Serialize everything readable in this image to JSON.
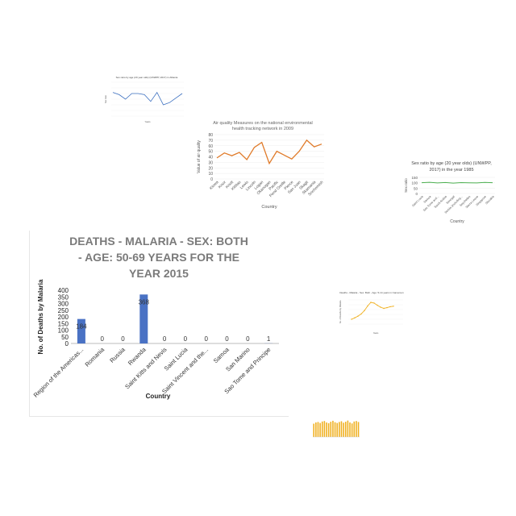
{
  "chart_data": [
    {
      "type": "bar",
      "title": "DEATHS - MALARIA - SEX: BOTH - AGE: 50-69 YEARS FOR THE YEAR 2015",
      "title_lines": [
        "DEATHS - MALARIA - SEX: BOTH",
        "- AGE: 50-69 YEARS FOR THE",
        "YEAR 2015"
      ],
      "xlabel": "Country",
      "ylabel": "No. of Deaths by Malaria",
      "ylim": [
        0,
        400
      ],
      "yticks": [
        "0",
        "50",
        "100",
        "150",
        "200",
        "250",
        "300",
        "350",
        "400"
      ],
      "categories": [
        "Region of the Americas...",
        "Romania",
        "Russia",
        "Rwanda",
        "Saint Kitts and Nevis",
        "Saint Lucia",
        "Saint Vincent and the...",
        "Samoa",
        "San Marino",
        "Sao Tome and Principe"
      ],
      "values": [
        184,
        0,
        0,
        368,
        0,
        0,
        0,
        0,
        0,
        1
      ],
      "data_labels": [
        "184",
        "0",
        "0",
        "368",
        "0",
        "0",
        "0",
        "0",
        "0",
        "1"
      ],
      "bar_color": "#4a72c4"
    },
    {
      "type": "line",
      "title": "Air quality Measures on the national environmental health tracking network in 2009",
      "title_lines": [
        "Air quality Measures on the national environmental",
        "health tracking network in 2009"
      ],
      "xlabel": "Country",
      "ylabel": "Value of air quality",
      "ylim": [
        0,
        80
      ],
      "yticks": [
        "0",
        "10",
        "20",
        "30",
        "40",
        "50",
        "60",
        "70",
        "80"
      ],
      "categories": [
        "Kiowa",
        "Knox",
        "Knott",
        "Kittitas",
        "Lewis",
        "Lincoln",
        "Logan",
        "Okanogan",
        "Pacific",
        "Pend Oreille",
        "Pierce",
        "San Juan",
        "Skagit",
        "Skamania",
        "Snohomish"
      ],
      "values": [
        38,
        47,
        42,
        48,
        35,
        57,
        66,
        28,
        50,
        43,
        36,
        50,
        70,
        58,
        63
      ],
      "line_color": "#e07b2a"
    },
    {
      "type": "line",
      "title": "Sex ratio by age (20 year olds) (UNWPP, 2017) in the year 1985",
      "title_lines": [
        "Sex ratio by age (20 year olds) (UNWPP,",
        "2017) in the year 1985"
      ],
      "xlabel": "Country",
      "ylabel": "Sex ratio",
      "ylim": [
        0,
        150
      ],
      "yticks": [
        "0",
        "50",
        "100",
        "150"
      ],
      "categories": [
        "Saint Lucia",
        "Samoa",
        "Sao Tome and...",
        "Saudi Arabia",
        "Senegal",
        "Serbia (including...",
        "Seychelles",
        "Sierra Leone",
        "Singapore",
        "Slovakia"
      ],
      "values": [
        100,
        104,
        98,
        102,
        97,
        101,
        99,
        98,
        103,
        100
      ],
      "line_color": "#4caf50"
    },
    {
      "type": "line",
      "title": "Sex ratio by age (20 year olds) (UNWPP, 2017) in Albania",
      "xlabel": "Years",
      "ylabel": "Sex ratio",
      "values": [
        106,
        104,
        100,
        105,
        105,
        104,
        98,
        106,
        95,
        97,
        101,
        105
      ],
      "line_color": "#3b6fc0"
    },
    {
      "type": "line",
      "title": "Deaths - Malaria - Sex: Both - Age: 5-14 years in Cameroon",
      "xlabel": "Years",
      "ylabel": "No. of Deaths by Malaria",
      "values": [
        200,
        260,
        330,
        420,
        560,
        750,
        900,
        870,
        780,
        700,
        650,
        680,
        720,
        740
      ],
      "line_color": "#f0b020"
    },
    {
      "type": "bar",
      "values": [
        55,
        60,
        62,
        58,
        64,
        66,
        60,
        57,
        63,
        67,
        61,
        58,
        62,
        65,
        59,
        63,
        68,
        60,
        56,
        64,
        66,
        62
      ],
      "bar_color": "#f0b020"
    }
  ]
}
